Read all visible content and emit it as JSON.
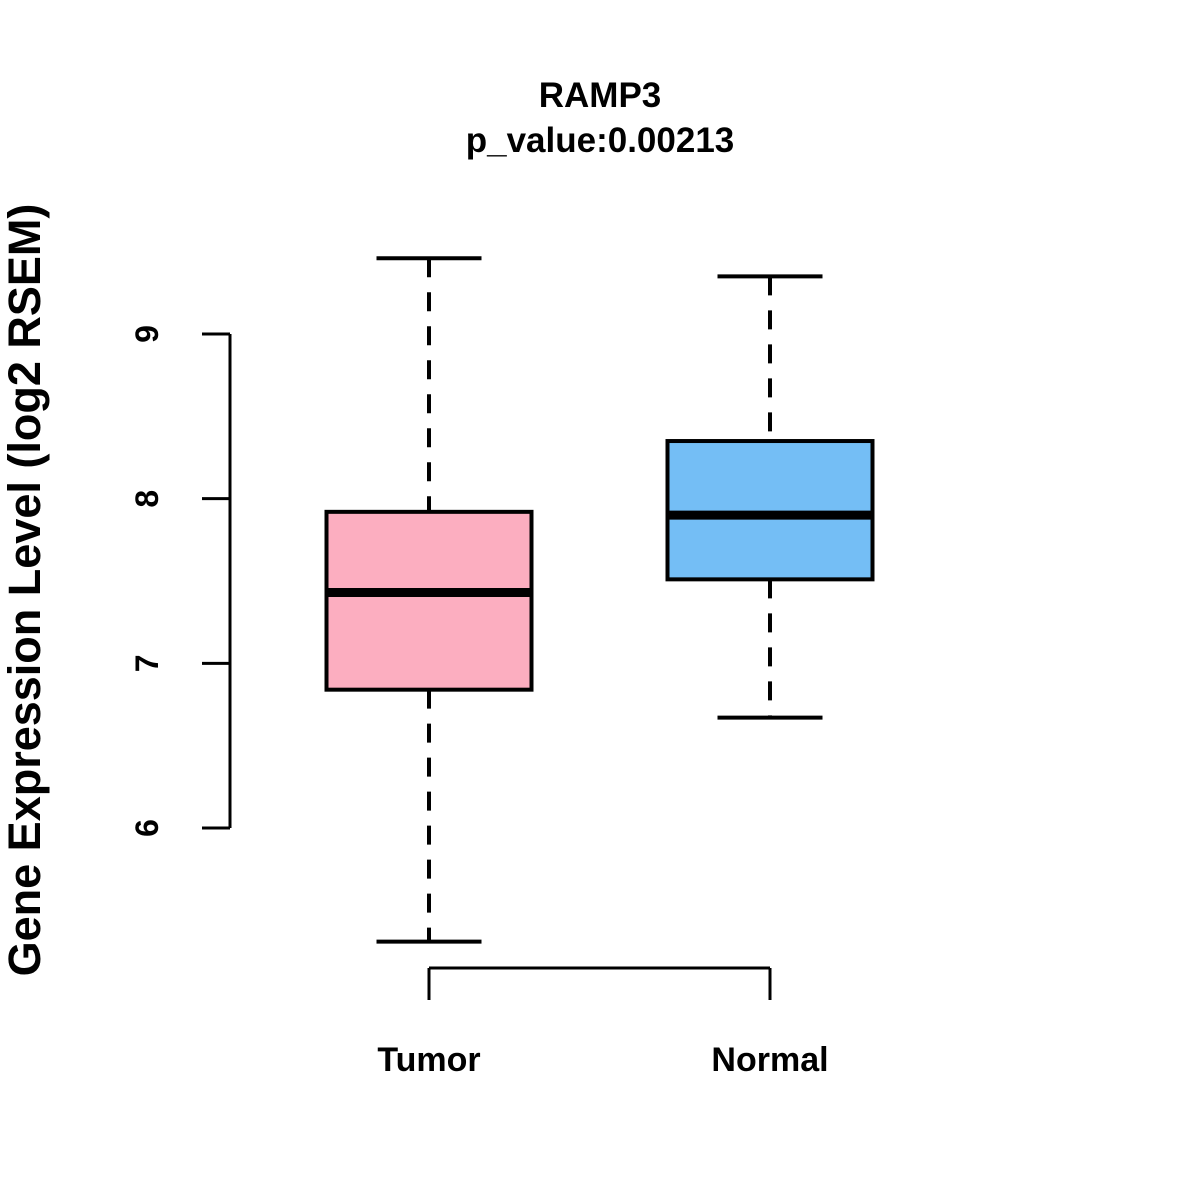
{
  "figure": {
    "background_color": "#FFFFFF",
    "text_color": "#000000"
  },
  "chart_data": {
    "type": "boxplot",
    "title": "RAMP3",
    "subtitle": "p_value:0.00213",
    "gene": "RAMP3",
    "p_value": 0.00213,
    "ylabel": "Gene Expression Level (log2 RSEM)",
    "xlabel": "",
    "categories": [
      "Tumor",
      "Normal"
    ],
    "y_axis": {
      "ticks": [
        6,
        7,
        8,
        9
      ],
      "axis_drawn_range": [
        6,
        9
      ]
    },
    "grid": false,
    "legend": "none",
    "series": [
      {
        "name": "Tumor",
        "fill_color": "#FCAEC0",
        "stats": {
          "min": 5.31,
          "q1": 6.84,
          "median": 7.43,
          "q3": 7.92,
          "max": 9.46
        }
      },
      {
        "name": "Normal",
        "fill_color": "#74BEF5",
        "stats": {
          "min": 6.67,
          "q1": 7.51,
          "median": 7.9,
          "q3": 8.35,
          "max": 9.35
        }
      }
    ],
    "style": {
      "box_border_color": "#000000",
      "median_line_color": "#000000",
      "whisker_line_style": "dashed",
      "whisker_line_color": "#000000"
    }
  }
}
